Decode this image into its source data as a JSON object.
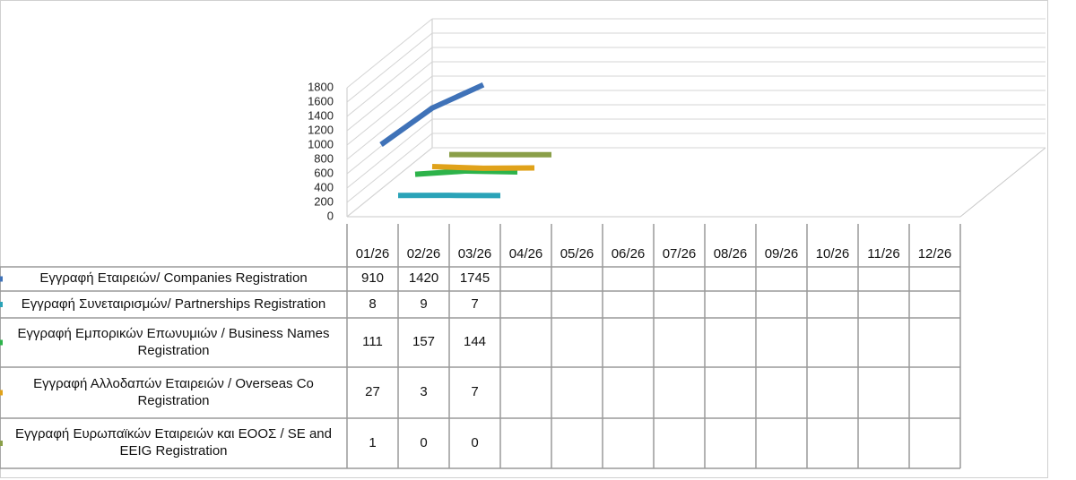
{
  "chart_data": {
    "type": "line",
    "categories": [
      "01/26",
      "02/26",
      "03/26",
      "04/26",
      "05/26",
      "06/26",
      "07/26",
      "08/26",
      "09/26",
      "10/26",
      "11/26",
      "12/26"
    ],
    "series": [
      {
        "name": "Εγγραφή Εταιρειών/ Companies Registration",
        "color": "#3f72b8",
        "values": [
          910,
          1420,
          1745,
          null,
          null,
          null,
          null,
          null,
          null,
          null,
          null,
          null
        ]
      },
      {
        "name": "Εγγραφή Συνεταιρισμών/ Partnerships Registration",
        "color": "#2aa3b8",
        "values": [
          8,
          9,
          7,
          null,
          null,
          null,
          null,
          null,
          null,
          null,
          null,
          null
        ]
      },
      {
        "name": "Εγγραφή Εμπορικών Επωνυμιών / Business Names Registration",
        "color": "#2db34a",
        "values": [
          111,
          157,
          144,
          null,
          null,
          null,
          null,
          null,
          null,
          null,
          null,
          null
        ]
      },
      {
        "name": "Εγγραφή Αλλοδαπών Εταιρειών / Overseas Co Registration",
        "color": "#e0a21a",
        "values": [
          27,
          3,
          7,
          null,
          null,
          null,
          null,
          null,
          null,
          null,
          null,
          null
        ]
      },
      {
        "name": "Εγγραφή Ευρωπαϊκών Εταιρειών και ΕΟΟΣ / SE and EEIG Registration",
        "color": "#8a9f48",
        "values": [
          1,
          0,
          0,
          null,
          null,
          null,
          null,
          null,
          null,
          null,
          null,
          null
        ]
      }
    ],
    "ylim": [
      0,
      1800
    ],
    "yticks": [
      0,
      200,
      400,
      600,
      800,
      1000,
      1200,
      1400,
      1600,
      1800
    ],
    "grid": true
  }
}
